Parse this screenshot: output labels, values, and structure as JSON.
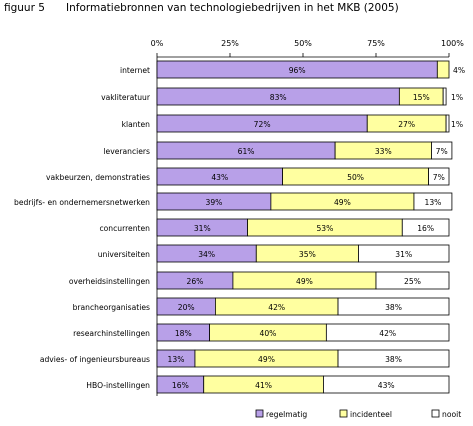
{
  "figure_label": "figuur 5",
  "title": "Informatiebronnen van technologiebedrijven in het MKB (2005)",
  "colors": {
    "regelmatig": "#b8a0e8",
    "incidenteel": "#ffffa0",
    "nooit": "#ffffff",
    "border": "#000000"
  },
  "chart_data": {
    "type": "bar",
    "orientation": "horizontal",
    "stacked": true,
    "title": "Informatiebronnen van technologiebedrijven in het MKB (2005)",
    "xlim": [
      0,
      100
    ],
    "x_ticks": [
      "0%",
      "25%",
      "50%",
      "75%",
      "100%"
    ],
    "grid": false,
    "legend_position": "bottom-right",
    "categories": [
      "internet",
      "vakliteratuur",
      "klanten",
      "leveranciers",
      "vakbeurzen, demonstraties",
      "bedrijfs- en ondernemersnetwerken",
      "concurrenten",
      "universiteiten",
      "overheidsinstellingen",
      "brancheorganisaties",
      "researchinstellingen",
      "advies- of ingenieursbureaus",
      "HBO-instellingen"
    ],
    "series": [
      {
        "name": "regelmatig",
        "values": [
          96,
          83,
          72,
          61,
          43,
          39,
          31,
          34,
          26,
          20,
          18,
          13,
          16
        ],
        "labels": [
          "96%",
          "83%",
          "72%",
          "61%",
          "43%",
          "39%",
          "31%",
          "34%",
          "26%",
          "20%",
          "18%",
          "13%",
          "16%"
        ]
      },
      {
        "name": "incidenteel",
        "values": [
          4,
          15,
          27,
          33,
          50,
          49,
          53,
          35,
          49,
          42,
          40,
          49,
          41
        ],
        "labels": [
          "4%",
          "15%",
          "27%",
          "33%",
          "50%",
          "49%",
          "53%",
          "35%",
          "49%",
          "42%",
          "40%",
          "49%",
          "41%"
        ]
      },
      {
        "name": "nooit",
        "values": [
          0,
          1,
          1,
          7,
          7,
          13,
          16,
          31,
          25,
          38,
          42,
          38,
          43
        ],
        "labels": [
          "",
          "1%",
          "1%",
          "7%",
          "7%",
          "13%",
          "16%",
          "31%",
          "25%",
          "38%",
          "42%",
          "38%",
          "43%"
        ]
      }
    ]
  }
}
